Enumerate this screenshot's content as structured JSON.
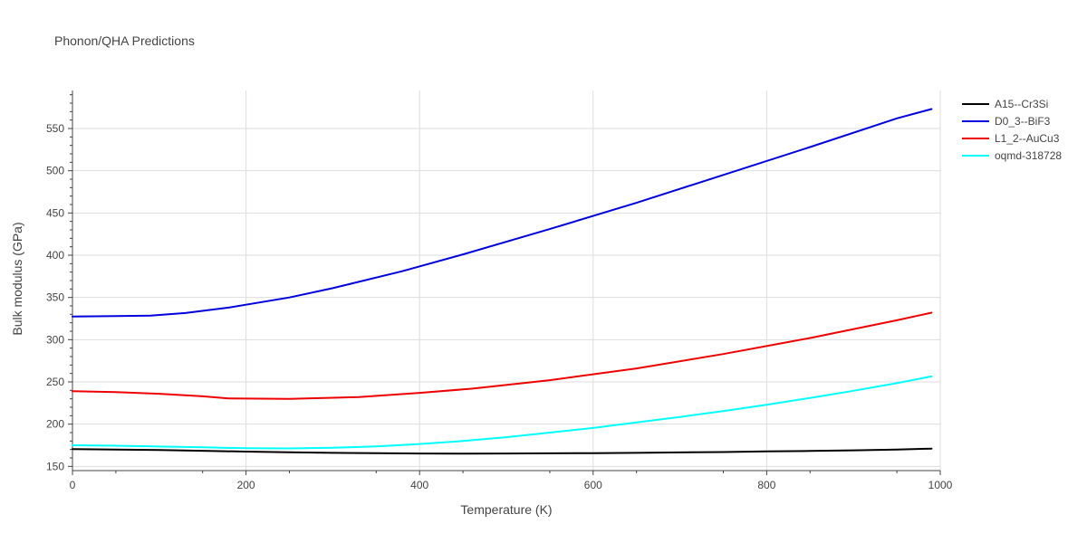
{
  "chart_data": {
    "type": "line",
    "title": "Phonon/QHA Predictions",
    "xlabel": "Temperature (K)",
    "ylabel": "Bulk modulus (GPa)",
    "xlim": [
      0,
      1000
    ],
    "ylim": [
      145,
      595
    ],
    "xticks": [
      0,
      200,
      400,
      600,
      800,
      1000
    ],
    "yticks": [
      150,
      200,
      250,
      300,
      350,
      400,
      450,
      500,
      550
    ],
    "grid": true,
    "legend_position": "top-right",
    "series": [
      {
        "name": "A15--Cr3Si",
        "color": "#000000",
        "x": [
          0,
          50,
          100,
          150,
          200,
          250,
          300,
          350,
          400,
          450,
          500,
          550,
          600,
          650,
          700,
          750,
          800,
          850,
          900,
          950,
          990
        ],
        "y": [
          170.5,
          170,
          169.3,
          168.5,
          167.5,
          166.7,
          166,
          165.7,
          165.3,
          165,
          165.2,
          165.5,
          165.7,
          166,
          166.5,
          167,
          167.7,
          168.3,
          169,
          170,
          171
        ]
      },
      {
        "name": "D0_3--BiF3",
        "color": "#0000dd",
        "x": [
          0,
          50,
          90,
          130,
          180,
          250,
          300,
          380,
          450,
          550,
          650,
          750,
          850,
          950,
          990
        ],
        "y": [
          327.5,
          328,
          328.5,
          331.5,
          338,
          350,
          361,
          381,
          401,
          431,
          462,
          495,
          528,
          562,
          573
        ]
      },
      {
        "name": "L1_2--AuCu3",
        "color": "#ee0000",
        "x": [
          0,
          50,
          100,
          150,
          180,
          250,
          330,
          400,
          460,
          550,
          650,
          750,
          850,
          950,
          990
        ],
        "y": [
          239,
          238,
          236,
          233,
          230.5,
          230,
          232,
          237,
          242,
          252,
          266,
          283,
          302,
          323,
          332
        ]
      },
      {
        "name": "oqmd-318728",
        "color": "#00ffff",
        "x": [
          0,
          50,
          100,
          150,
          200,
          250,
          300,
          350,
          400,
          450,
          500,
          550,
          600,
          650,
          700,
          750,
          800,
          850,
          900,
          950,
          990
        ],
        "y": [
          175,
          174.5,
          173.5,
          172.5,
          171.5,
          171.3,
          172,
          173.7,
          176.5,
          180,
          184.5,
          190,
          195.5,
          202,
          208.5,
          215.5,
          223,
          231,
          239.5,
          248.5,
          256.5
        ]
      }
    ]
  }
}
